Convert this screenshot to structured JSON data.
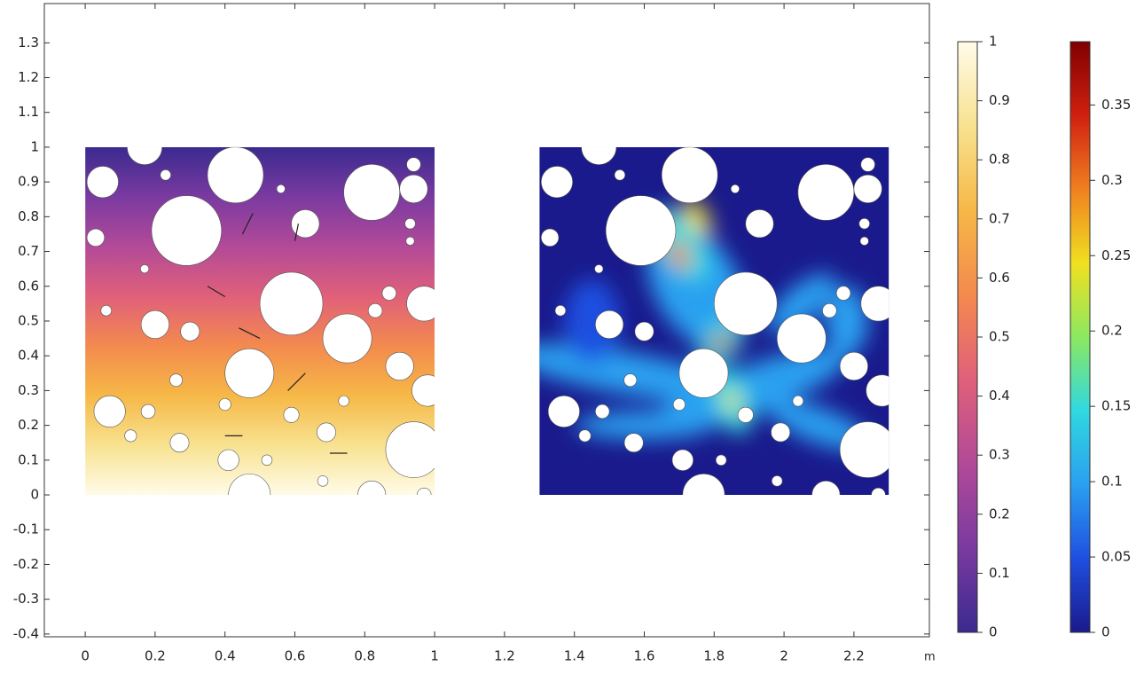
{
  "chart_data": {
    "type": "field",
    "x_unit": "m",
    "xlim": [
      -0.117,
      2.416
    ],
    "ylim": [
      -0.408,
      1.413
    ],
    "xticks": [
      0,
      0.2,
      0.4,
      0.6,
      0.8,
      1,
      1.2,
      1.4,
      1.6,
      1.8,
      2,
      2.2
    ],
    "yticks": [
      -0.4,
      -0.3,
      -0.2,
      -0.1,
      0,
      0.1,
      0.2,
      0.3,
      0.4,
      0.5,
      0.6,
      0.7,
      0.8,
      0.9,
      1,
      1.1,
      1.2,
      1.3
    ],
    "colorbars": [
      {
        "lim": [
          0,
          1
        ],
        "ticks": [
          0,
          0.1,
          0.2,
          0.3,
          0.4,
          0.5,
          0.6,
          0.7,
          0.8,
          0.9,
          1
        ],
        "colors": [
          "#3b2a8f",
          "#7a3aa0",
          "#b24a98",
          "#e0607a",
          "#f38a4e",
          "#f6b847",
          "#f8e290",
          "#fffbe8"
        ]
      },
      {
        "lim": [
          0,
          0.392
        ],
        "ticks": [
          0,
          0.05,
          0.1,
          0.15,
          0.2,
          0.25,
          0.3,
          0.35
        ],
        "colors": [
          "#1a1a8c",
          "#1f4fe0",
          "#2aa0f0",
          "#30d8e0",
          "#8ce860",
          "#f0e020",
          "#f08020",
          "#d02010",
          "#800000"
        ]
      }
    ]
  }
}
